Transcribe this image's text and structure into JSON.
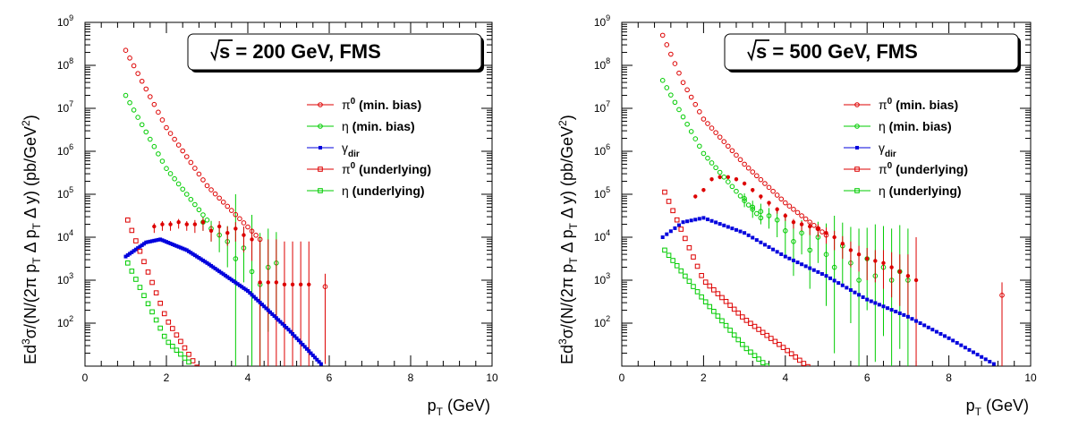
{
  "colors": {
    "pi0": "#dd0000",
    "eta": "#00cc00",
    "gamma": "#0000dd",
    "data": "#dd0000"
  },
  "chart_data": [
    {
      "type": "scatter",
      "title_prefix": "s",
      "title": " = 200 GeV,   FMS",
      "xlabel_main": "p",
      "xlabel_sub": "T",
      "xlabel_tail": " (GeV)",
      "ylabel": "Ed³σ/(N/(2π p_T Δ p_T Δ y) (pb/GeV²)",
      "xlim": [
        0,
        10
      ],
      "ylim_log10": [
        1,
        9
      ],
      "x_ticks": [
        "0",
        "2",
        "4",
        "6",
        "8",
        "10"
      ],
      "y_ticks": [
        "10^2",
        "10^3",
        "10^4",
        "10^5",
        "10^6",
        "10^7",
        "10^8",
        "10^9"
      ],
      "legend": [
        {
          "sym": "π",
          "sup": "0",
          "sub": "",
          "text": " (min. bias)",
          "marker": "circle",
          "color": "#dd0000"
        },
        {
          "sym": "η",
          "sup": "",
          "sub": "",
          "text": " (min. bias)",
          "marker": "circle",
          "color": "#00cc00"
        },
        {
          "sym": "γ",
          "sup": "",
          "sub": "dir",
          "text": "",
          "marker": "fsquare",
          "color": "#0000dd"
        },
        {
          "sym": "π",
          "sup": "0",
          "sub": "",
          "text": " (underlying)",
          "marker": "square",
          "color": "#dd0000"
        },
        {
          "sym": "η",
          "sup": "",
          "sub": "",
          "text": " (underlying)",
          "marker": "square",
          "color": "#00cc00"
        }
      ],
      "curves": [
        {
          "name": "pi0_minbias",
          "marker": "circle",
          "color": "#dd0000",
          "x_start": 1.0,
          "x_end": 4.3,
          "step": 0.1,
          "log_points": [
            [
              1.0,
              8.35
            ],
            [
              2.0,
              6.55
            ],
            [
              3.0,
              5.2
            ],
            [
              4.3,
              3.95
            ]
          ]
        },
        {
          "name": "eta_minbias",
          "marker": "circle",
          "color": "#00cc00",
          "x_start": 1.0,
          "x_end": 3.0,
          "step": 0.1,
          "log_points": [
            [
              1.0,
              7.3
            ],
            [
              2.0,
              5.6
            ],
            [
              3.0,
              4.4
            ]
          ]
        },
        {
          "name": "gamma_dir",
          "marker": "fsquare",
          "color": "#0000dd",
          "x_start": 1.0,
          "x_end": 5.8,
          "step": 0.05,
          "log_points": [
            [
              1.0,
              3.55
            ],
            [
              1.5,
              3.88
            ],
            [
              1.85,
              3.95
            ],
            [
              2.5,
              3.7
            ],
            [
              3.0,
              3.4
            ],
            [
              4.0,
              2.75
            ],
            [
              5.0,
              1.85
            ],
            [
              5.6,
              1.25
            ],
            [
              5.8,
              1.05
            ]
          ]
        },
        {
          "name": "pi0_underlying",
          "marker": "square",
          "color": "#dd0000",
          "x_start": 1.05,
          "x_end": 3.0,
          "step": 0.1,
          "log_points": [
            [
              1.05,
              4.4
            ],
            [
              2.0,
              2.1
            ],
            [
              3.0,
              0.6
            ]
          ]
        },
        {
          "name": "eta_underlying",
          "marker": "square",
          "color": "#00cc00",
          "x_start": 1.05,
          "x_end": 2.6,
          "step": 0.1,
          "log_points": [
            [
              1.05,
              3.4
            ],
            [
              2.0,
              1.6
            ],
            [
              2.6,
              1.05
            ]
          ]
        }
      ],
      "data_points": {
        "pi0_data": [
          [
            1.7,
            4.25,
            0.15
          ],
          [
            1.9,
            4.3,
            0.15
          ],
          [
            2.1,
            4.3,
            0.15
          ],
          [
            2.3,
            4.35,
            0.15
          ],
          [
            2.5,
            4.3,
            0.15
          ],
          [
            2.7,
            4.3,
            0.2
          ],
          [
            2.9,
            4.35,
            0.2
          ],
          [
            3.1,
            4.15,
            0.25
          ],
          [
            3.3,
            4.25,
            0.25
          ],
          [
            3.5,
            4.1,
            0.3
          ],
          [
            3.7,
            4.2,
            0.3
          ],
          [
            3.9,
            4.05,
            0.4
          ],
          [
            4.1,
            3.95,
            0.5
          ],
          [
            4.3,
            2.95,
            2.0
          ],
          [
            4.5,
            2.95,
            2.0
          ],
          [
            4.7,
            2.95,
            2.0
          ],
          [
            4.9,
            2.9,
            2.0
          ],
          [
            5.1,
            2.9,
            2.0
          ],
          [
            5.3,
            2.9,
            2.0
          ],
          [
            5.5,
            2.9,
            2.0
          ]
        ],
        "pi0_data_open": [
          [
            5.9,
            2.85
          ]
        ],
        "eta_data": [
          [
            2.9,
            4.35,
            0.2
          ],
          [
            3.1,
            4.2,
            0.3
          ],
          [
            3.3,
            4.05,
            0.4
          ],
          [
            3.5,
            3.9,
            0.6
          ],
          [
            3.7,
            3.5,
            2.5
          ],
          [
            3.9,
            3.75,
            0.8
          ],
          [
            4.1,
            3.2,
            2.2
          ],
          [
            4.3,
            2.9,
            2.0
          ],
          [
            4.5,
            3.3,
            1.5
          ],
          [
            4.7,
            3.4,
            1.2
          ]
        ]
      }
    },
    {
      "type": "scatter",
      "title_prefix": "s",
      "title": " = 500 GeV,   FMS",
      "xlabel_main": "p",
      "xlabel_sub": "T",
      "xlabel_tail": " (GeV)",
      "ylabel": "Ed³σ/(N/(2π p_T Δ p_T Δ y) (pb/GeV²)",
      "xlim": [
        0,
        10
      ],
      "ylim_log10": [
        1,
        9
      ],
      "x_ticks": [
        "0",
        "2",
        "4",
        "6",
        "8",
        "10"
      ],
      "y_ticks": [
        "10^2",
        "10^3",
        "10^4",
        "10^5",
        "10^6",
        "10^7",
        "10^8",
        "10^9"
      ],
      "legend": [
        {
          "sym": "π",
          "sup": "0",
          "sub": "",
          "text": " (min. bias)",
          "marker": "circle",
          "color": "#dd0000"
        },
        {
          "sym": "η",
          "sup": "",
          "sub": "",
          "text": " (min. bias)",
          "marker": "circle",
          "color": "#00cc00"
        },
        {
          "sym": "γ",
          "sup": "",
          "sub": "dir",
          "text": "",
          "marker": "fsquare",
          "color": "#0000dd"
        },
        {
          "sym": "π",
          "sup": "0",
          "sub": "",
          "text": " (underlying)",
          "marker": "square",
          "color": "#dd0000"
        },
        {
          "sym": "η",
          "sup": "",
          "sub": "",
          "text": " (underlying)",
          "marker": "square",
          "color": "#00cc00"
        }
      ],
      "curves": [
        {
          "name": "pi0_minbias",
          "marker": "circle",
          "color": "#dd0000",
          "x_start": 1.0,
          "x_end": 5.0,
          "step": 0.1,
          "log_points": [
            [
              1.0,
              8.7
            ],
            [
              1.5,
              7.6
            ],
            [
              2.0,
              6.75
            ],
            [
              3.0,
              5.7
            ],
            [
              4.0,
              4.8
            ],
            [
              5.0,
              4.05
            ]
          ]
        },
        {
          "name": "eta_minbias",
          "marker": "circle",
          "color": "#00cc00",
          "x_start": 1.0,
          "x_end": 3.4,
          "step": 0.1,
          "log_points": [
            [
              1.0,
              7.65
            ],
            [
              2.0,
              5.95
            ],
            [
              3.0,
              4.85
            ],
            [
              3.4,
              4.45
            ]
          ]
        },
        {
          "name": "gamma_dir",
          "marker": "fsquare",
          "color": "#0000dd",
          "x_start": 1.0,
          "x_end": 9.1,
          "step": 0.1,
          "log_points": [
            [
              1.0,
              4.0
            ],
            [
              1.5,
              4.35
            ],
            [
              2.0,
              4.45
            ],
            [
              3.0,
              4.1
            ],
            [
              4.0,
              3.55
            ],
            [
              5.0,
              3.1
            ],
            [
              6.0,
              2.55
            ],
            [
              7.0,
              2.15
            ],
            [
              8.0,
              1.65
            ],
            [
              9.1,
              1.05
            ]
          ]
        },
        {
          "name": "pi0_underlying",
          "marker": "square",
          "color": "#dd0000",
          "x_start": 1.05,
          "x_end": 4.6,
          "step": 0.1,
          "log_points": [
            [
              1.05,
              5.05
            ],
            [
              2.0,
              3.0
            ],
            [
              3.0,
              2.1
            ],
            [
              4.0,
              1.4
            ],
            [
              4.6,
              0.95
            ]
          ]
        },
        {
          "name": "eta_underlying",
          "marker": "square",
          "color": "#00cc00",
          "x_start": 1.05,
          "x_end": 3.55,
          "step": 0.1,
          "log_points": [
            [
              1.05,
              3.7
            ],
            [
              2.0,
              2.55
            ],
            [
              3.0,
              1.45
            ],
            [
              3.55,
              1.0
            ]
          ]
        }
      ],
      "data_points": {
        "pi0_data": [
          [
            1.8,
            4.95,
            0.05
          ],
          [
            2.0,
            5.1,
            0.05
          ],
          [
            2.2,
            5.35,
            0.05
          ],
          [
            2.4,
            5.4,
            0.05
          ],
          [
            2.6,
            5.4,
            0.05
          ],
          [
            2.8,
            5.35,
            0.05
          ],
          [
            3.0,
            5.25,
            0.05
          ],
          [
            3.2,
            5.1,
            0.06
          ],
          [
            3.4,
            4.95,
            0.07
          ],
          [
            3.6,
            4.8,
            0.08
          ],
          [
            3.8,
            4.65,
            0.1
          ],
          [
            4.0,
            4.5,
            0.12
          ],
          [
            4.2,
            4.35,
            0.15
          ],
          [
            4.4,
            4.3,
            0.15
          ],
          [
            4.6,
            4.25,
            0.2
          ],
          [
            4.8,
            4.2,
            0.2
          ],
          [
            5.0,
            4.1,
            0.25
          ],
          [
            5.2,
            4.0,
            0.3
          ],
          [
            5.4,
            3.85,
            0.35
          ],
          [
            5.6,
            3.7,
            0.4
          ],
          [
            5.8,
            3.6,
            0.4
          ],
          [
            6.0,
            3.5,
            0.5
          ],
          [
            6.2,
            3.45,
            0.5
          ],
          [
            6.4,
            3.4,
            0.6
          ],
          [
            6.6,
            3.3,
            0.7
          ],
          [
            6.8,
            3.2,
            0.8
          ],
          [
            7.0,
            3.1,
            1.0
          ],
          [
            7.2,
            3.0,
            2.0
          ]
        ],
        "pi0_data_open": [
          [
            9.3,
            2.65
          ]
        ],
        "eta_data": [
          [
            3.0,
            4.9,
            0.2
          ],
          [
            3.2,
            4.7,
            0.25
          ],
          [
            3.4,
            4.6,
            0.3
          ],
          [
            3.6,
            4.5,
            0.3
          ],
          [
            3.8,
            4.4,
            0.4
          ],
          [
            4.0,
            4.15,
            0.6
          ],
          [
            4.2,
            3.9,
            0.8
          ],
          [
            4.4,
            4.1,
            0.5
          ],
          [
            4.6,
            3.7,
            0.9
          ],
          [
            4.8,
            4.0,
            0.6
          ],
          [
            5.0,
            3.6,
            1.2
          ],
          [
            5.2,
            3.3,
            2.0
          ],
          [
            5.4,
            3.8,
            0.9
          ],
          [
            5.6,
            3.4,
            1.4
          ],
          [
            5.8,
            3.0,
            2.0
          ],
          [
            6.0,
            3.5,
            1.2
          ],
          [
            6.2,
            3.1,
            2.0
          ],
          [
            6.4,
            3.3,
            1.6
          ],
          [
            6.6,
            3.0,
            2.0
          ],
          [
            6.8,
            3.2,
            1.8
          ],
          [
            7.0,
            3.0,
            2.0
          ]
        ]
      }
    }
  ]
}
